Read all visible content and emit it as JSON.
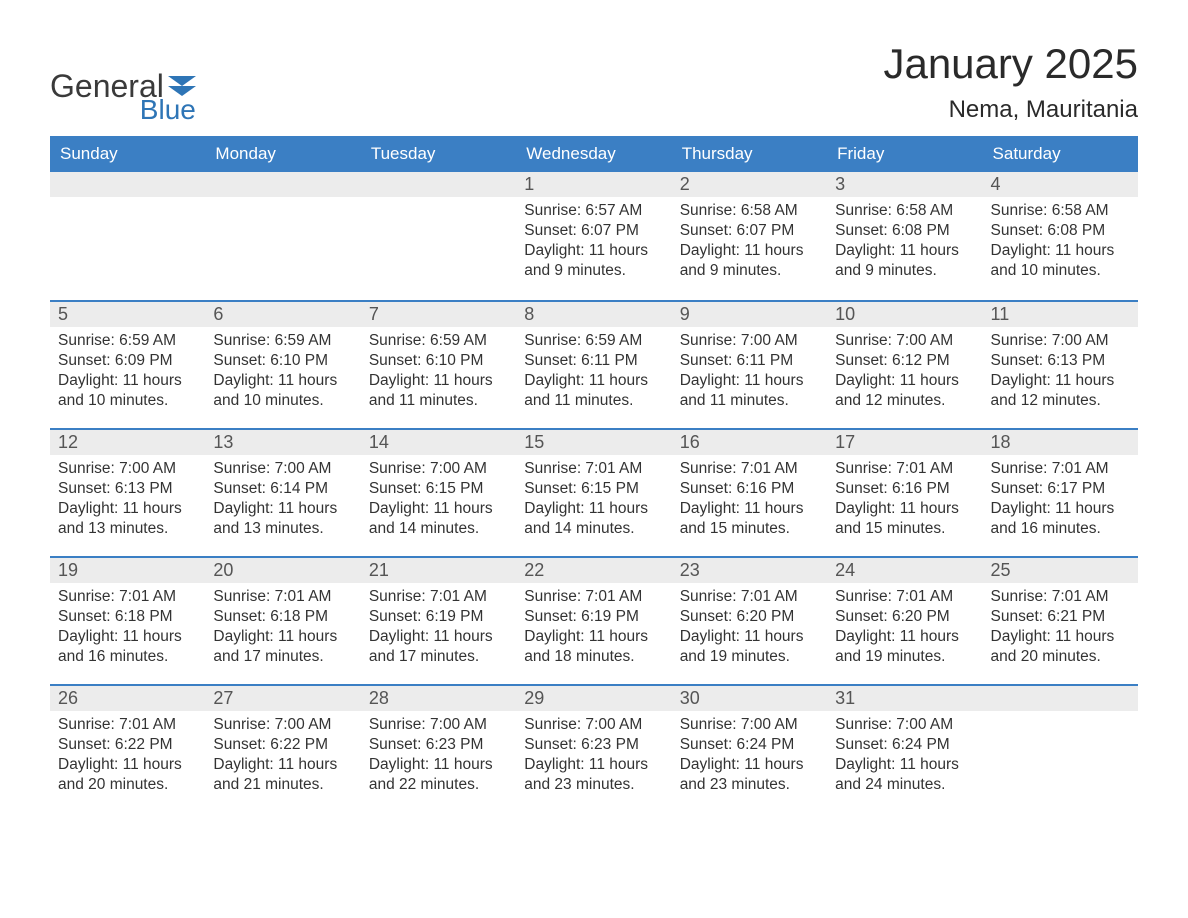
{
  "logo": {
    "word1": "General",
    "word2": "Blue",
    "text_color": "#3a3a3a",
    "accent_color": "#2e75b6"
  },
  "title": "January 2025",
  "location": "Nema, Mauritania",
  "colors": {
    "header_bg": "#3b7fc4",
    "header_text": "#ffffff",
    "daynum_bg": "#ececec",
    "daynum_text": "#555555",
    "body_text": "#333333",
    "row_divider": "#3b7fc4",
    "page_bg": "#ffffff"
  },
  "fonts": {
    "title_size_pt": 32,
    "location_size_pt": 18,
    "weekday_size_pt": 13,
    "daynum_size_pt": 14,
    "body_size_pt": 12
  },
  "weekdays": [
    "Sunday",
    "Monday",
    "Tuesday",
    "Wednesday",
    "Thursday",
    "Friday",
    "Saturday"
  ],
  "weeks": [
    [
      null,
      null,
      null,
      {
        "n": "1",
        "sunrise": "6:57 AM",
        "sunset": "6:07 PM",
        "daylight": "11 hours and 9 minutes."
      },
      {
        "n": "2",
        "sunrise": "6:58 AM",
        "sunset": "6:07 PM",
        "daylight": "11 hours and 9 minutes."
      },
      {
        "n": "3",
        "sunrise": "6:58 AM",
        "sunset": "6:08 PM",
        "daylight": "11 hours and 9 minutes."
      },
      {
        "n": "4",
        "sunrise": "6:58 AM",
        "sunset": "6:08 PM",
        "daylight": "11 hours and 10 minutes."
      }
    ],
    [
      {
        "n": "5",
        "sunrise": "6:59 AM",
        "sunset": "6:09 PM",
        "daylight": "11 hours and 10 minutes."
      },
      {
        "n": "6",
        "sunrise": "6:59 AM",
        "sunset": "6:10 PM",
        "daylight": "11 hours and 10 minutes."
      },
      {
        "n": "7",
        "sunrise": "6:59 AM",
        "sunset": "6:10 PM",
        "daylight": "11 hours and 11 minutes."
      },
      {
        "n": "8",
        "sunrise": "6:59 AM",
        "sunset": "6:11 PM",
        "daylight": "11 hours and 11 minutes."
      },
      {
        "n": "9",
        "sunrise": "7:00 AM",
        "sunset": "6:11 PM",
        "daylight": "11 hours and 11 minutes."
      },
      {
        "n": "10",
        "sunrise": "7:00 AM",
        "sunset": "6:12 PM",
        "daylight": "11 hours and 12 minutes."
      },
      {
        "n": "11",
        "sunrise": "7:00 AM",
        "sunset": "6:13 PM",
        "daylight": "11 hours and 12 minutes."
      }
    ],
    [
      {
        "n": "12",
        "sunrise": "7:00 AM",
        "sunset": "6:13 PM",
        "daylight": "11 hours and 13 minutes."
      },
      {
        "n": "13",
        "sunrise": "7:00 AM",
        "sunset": "6:14 PM",
        "daylight": "11 hours and 13 minutes."
      },
      {
        "n": "14",
        "sunrise": "7:00 AM",
        "sunset": "6:15 PM",
        "daylight": "11 hours and 14 minutes."
      },
      {
        "n": "15",
        "sunrise": "7:01 AM",
        "sunset": "6:15 PM",
        "daylight": "11 hours and 14 minutes."
      },
      {
        "n": "16",
        "sunrise": "7:01 AM",
        "sunset": "6:16 PM",
        "daylight": "11 hours and 15 minutes."
      },
      {
        "n": "17",
        "sunrise": "7:01 AM",
        "sunset": "6:16 PM",
        "daylight": "11 hours and 15 minutes."
      },
      {
        "n": "18",
        "sunrise": "7:01 AM",
        "sunset": "6:17 PM",
        "daylight": "11 hours and 16 minutes."
      }
    ],
    [
      {
        "n": "19",
        "sunrise": "7:01 AM",
        "sunset": "6:18 PM",
        "daylight": "11 hours and 16 minutes."
      },
      {
        "n": "20",
        "sunrise": "7:01 AM",
        "sunset": "6:18 PM",
        "daylight": "11 hours and 17 minutes."
      },
      {
        "n": "21",
        "sunrise": "7:01 AM",
        "sunset": "6:19 PM",
        "daylight": "11 hours and 17 minutes."
      },
      {
        "n": "22",
        "sunrise": "7:01 AM",
        "sunset": "6:19 PM",
        "daylight": "11 hours and 18 minutes."
      },
      {
        "n": "23",
        "sunrise": "7:01 AM",
        "sunset": "6:20 PM",
        "daylight": "11 hours and 19 minutes."
      },
      {
        "n": "24",
        "sunrise": "7:01 AM",
        "sunset": "6:20 PM",
        "daylight": "11 hours and 19 minutes."
      },
      {
        "n": "25",
        "sunrise": "7:01 AM",
        "sunset": "6:21 PM",
        "daylight": "11 hours and 20 minutes."
      }
    ],
    [
      {
        "n": "26",
        "sunrise": "7:01 AM",
        "sunset": "6:22 PM",
        "daylight": "11 hours and 20 minutes."
      },
      {
        "n": "27",
        "sunrise": "7:00 AM",
        "sunset": "6:22 PM",
        "daylight": "11 hours and 21 minutes."
      },
      {
        "n": "28",
        "sunrise": "7:00 AM",
        "sunset": "6:23 PM",
        "daylight": "11 hours and 22 minutes."
      },
      {
        "n": "29",
        "sunrise": "7:00 AM",
        "sunset": "6:23 PM",
        "daylight": "11 hours and 23 minutes."
      },
      {
        "n": "30",
        "sunrise": "7:00 AM",
        "sunset": "6:24 PM",
        "daylight": "11 hours and 23 minutes."
      },
      {
        "n": "31",
        "sunrise": "7:00 AM",
        "sunset": "6:24 PM",
        "daylight": "11 hours and 24 minutes."
      },
      null
    ]
  ],
  "labels": {
    "sunrise_prefix": "Sunrise: ",
    "sunset_prefix": "Sunset: ",
    "daylight_prefix": "Daylight: "
  }
}
